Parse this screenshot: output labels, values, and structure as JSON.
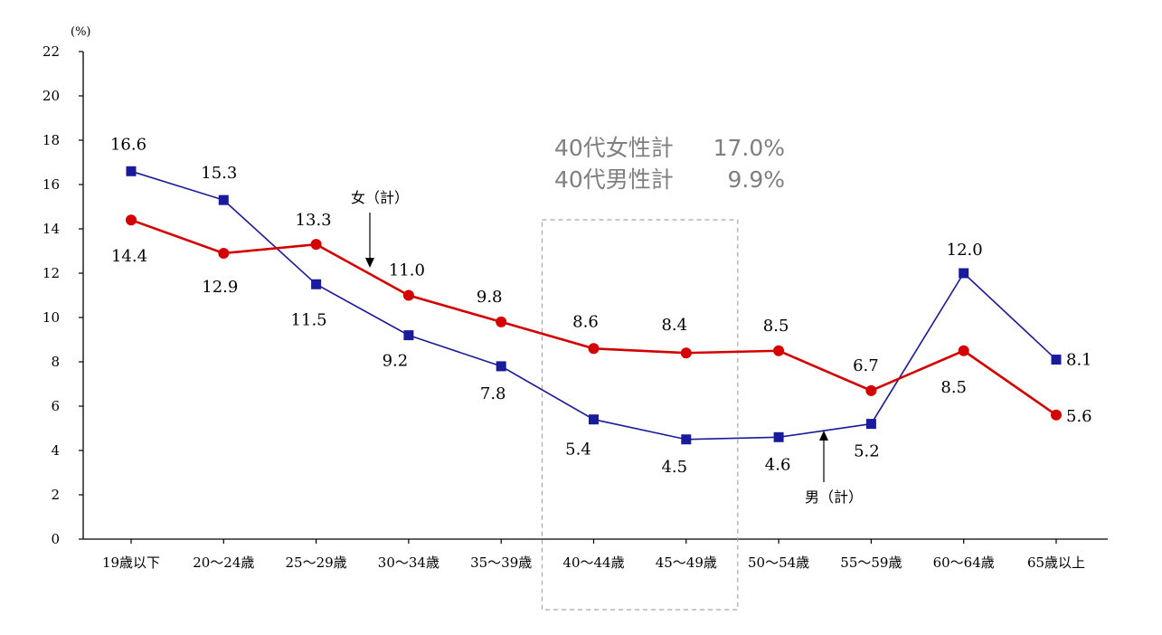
{
  "chart_data": {
    "type": "line",
    "unit_label": "(%)",
    "categories": [
      "19歳以下",
      "20～24歳",
      "25～29歳",
      "30～34歳",
      "35～39歳",
      "40～44歳",
      "45～49歳",
      "50～54歳",
      "55～59歳",
      "60～64歳",
      "65歳以上"
    ],
    "ylim": [
      0,
      22
    ],
    "yticks": [
      0,
      2,
      4,
      6,
      8,
      10,
      12,
      14,
      16,
      18,
      20,
      22
    ],
    "grid": false,
    "series": [
      {
        "name": "男（計）",
        "color": "#1a1a9c",
        "marker": "square",
        "values": [
          16.6,
          15.3,
          11.5,
          9.2,
          7.8,
          5.4,
          4.5,
          4.6,
          5.2,
          12.0,
          8.1
        ],
        "value_labels": [
          "16.6",
          "15.3",
          "11.5",
          "9.2",
          "7.8",
          "5.4",
          "4.5",
          "4.6",
          "5.2",
          "12.0",
          "8.1"
        ]
      },
      {
        "name": "女（計）",
        "color": "#d40000",
        "marker": "circle",
        "values": [
          14.4,
          12.9,
          13.3,
          11.0,
          9.8,
          8.6,
          8.4,
          8.5,
          6.7,
          8.5,
          5.6
        ],
        "value_labels": [
          "14.4",
          "12.9",
          "13.3",
          "11.0",
          "9.8",
          "8.6",
          "8.4",
          "8.5",
          "6.7",
          "8.5",
          "5.6"
        ]
      }
    ],
    "annotations": {
      "female_arrow_label": "女（計）",
      "male_arrow_label": "男（計）",
      "highlight_categories": [
        "40～44歳",
        "45～49歳"
      ],
      "summary_lines": [
        {
          "label": "40代女性計",
          "value": "17.0%"
        },
        {
          "label": "40代男性計",
          "value": "9.9%"
        }
      ]
    }
  }
}
